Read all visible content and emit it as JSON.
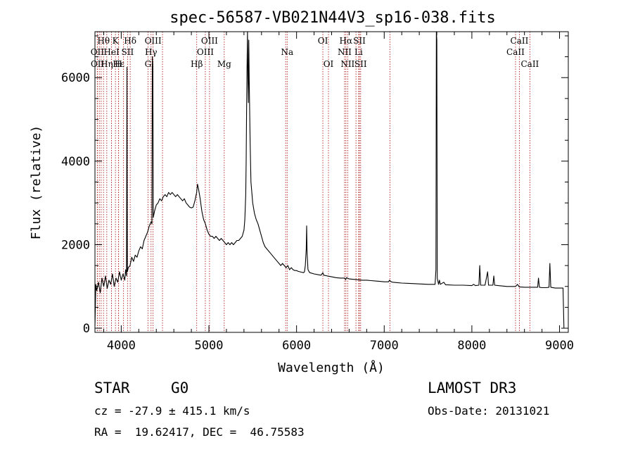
{
  "chart_data": {
    "type": "line",
    "title": "spec-56587-VB021N44V3_sp16-038.fits",
    "xlabel": "Wavelength (Å)",
    "ylabel": "Flux (relative)",
    "xlim": [
      3700,
      9100
    ],
    "ylim": [
      -100,
      7100
    ],
    "xticks": [
      4000,
      5000,
      6000,
      7000,
      8000,
      9000
    ],
    "yticks": [
      0,
      2000,
      4000,
      6000
    ],
    "line_color": "#000000",
    "marker_color": "#b22222",
    "spectrum": [
      [
        3700,
        50
      ],
      [
        3710,
        1050
      ],
      [
        3720,
        900
      ],
      [
        3740,
        1100
      ],
      [
        3760,
        850
      ],
      [
        3780,
        1200
      ],
      [
        3800,
        1000
      ],
      [
        3820,
        1250
      ],
      [
        3840,
        950
      ],
      [
        3860,
        1150
      ],
      [
        3880,
        1050
      ],
      [
        3900,
        1300
      ],
      [
        3920,
        1000
      ],
      [
        3940,
        1200
      ],
      [
        3960,
        1100
      ],
      [
        3980,
        1350
      ],
      [
        4000,
        1150
      ],
      [
        4020,
        1300
      ],
      [
        4040,
        1150
      ],
      [
        4050,
        1400
      ],
      [
        4060,
        1250
      ],
      [
        4065,
        6250
      ],
      [
        4070,
        1350
      ],
      [
        4080,
        1450
      ],
      [
        4100,
        1500
      ],
      [
        4120,
        1700
      ],
      [
        4140,
        1600
      ],
      [
        4160,
        1750
      ],
      [
        4180,
        1700
      ],
      [
        4200,
        1850
      ],
      [
        4220,
        1950
      ],
      [
        4240,
        1900
      ],
      [
        4260,
        2100
      ],
      [
        4280,
        2200
      ],
      [
        4300,
        2300
      ],
      [
        4320,
        2450
      ],
      [
        4340,
        2550
      ],
      [
        4350,
        2500
      ],
      [
        4355,
        6500
      ],
      [
        4360,
        6300
      ],
      [
        4365,
        2650
      ],
      [
        4380,
        2800
      ],
      [
        4400,
        2950
      ],
      [
        4420,
        3000
      ],
      [
        4440,
        3100
      ],
      [
        4460,
        3050
      ],
      [
        4480,
        3150
      ],
      [
        4500,
        3200
      ],
      [
        4520,
        3150
      ],
      [
        4540,
        3250
      ],
      [
        4560,
        3200
      ],
      [
        4580,
        3250
      ],
      [
        4600,
        3200
      ],
      [
        4620,
        3150
      ],
      [
        4640,
        3200
      ],
      [
        4660,
        3150
      ],
      [
        4680,
        3100
      ],
      [
        4700,
        3050
      ],
      [
        4720,
        3100
      ],
      [
        4740,
        3000
      ],
      [
        4760,
        2950
      ],
      [
        4780,
        2900
      ],
      [
        4800,
        2880
      ],
      [
        4820,
        2900
      ],
      [
        4840,
        3050
      ],
      [
        4860,
        3250
      ],
      [
        4870,
        3450
      ],
      [
        4880,
        3350
      ],
      [
        4900,
        3100
      ],
      [
        4920,
        2800
      ],
      [
        4940,
        2600
      ],
      [
        4960,
        2500
      ],
      [
        4980,
        2350
      ],
      [
        5000,
        2250
      ],
      [
        5020,
        2200
      ],
      [
        5040,
        2200
      ],
      [
        5060,
        2150
      ],
      [
        5080,
        2200
      ],
      [
        5100,
        2150
      ],
      [
        5120,
        2100
      ],
      [
        5140,
        2150
      ],
      [
        5160,
        2100
      ],
      [
        5180,
        2050
      ],
      [
        5200,
        2000
      ],
      [
        5220,
        2050
      ],
      [
        5240,
        2000
      ],
      [
        5260,
        2050
      ],
      [
        5280,
        2000
      ],
      [
        5300,
        2050
      ],
      [
        5320,
        2100
      ],
      [
        5340,
        2100
      ],
      [
        5360,
        2150
      ],
      [
        5380,
        2200
      ],
      [
        5400,
        2350
      ],
      [
        5410,
        2600
      ],
      [
        5420,
        3200
      ],
      [
        5425,
        4000
      ],
      [
        5430,
        5200
      ],
      [
        5435,
        6200
      ],
      [
        5440,
        7100
      ],
      [
        5445,
        6000
      ],
      [
        5450,
        5400
      ],
      [
        5455,
        6900
      ],
      [
        5460,
        6000
      ],
      [
        5470,
        4500
      ],
      [
        5480,
        3500
      ],
      [
        5500,
        3000
      ],
      [
        5520,
        2750
      ],
      [
        5540,
        2600
      ],
      [
        5560,
        2500
      ],
      [
        5580,
        2350
      ],
      [
        5600,
        2200
      ],
      [
        5620,
        2050
      ],
      [
        5640,
        1950
      ],
      [
        5660,
        1900
      ],
      [
        5680,
        1850
      ],
      [
        5700,
        1800
      ],
      [
        5720,
        1750
      ],
      [
        5740,
        1700
      ],
      [
        5760,
        1650
      ],
      [
        5780,
        1600
      ],
      [
        5800,
        1550
      ],
      [
        5820,
        1500
      ],
      [
        5840,
        1550
      ],
      [
        5860,
        1500
      ],
      [
        5880,
        1450
      ],
      [
        5900,
        1500
      ],
      [
        5920,
        1400
      ],
      [
        5940,
        1450
      ],
      [
        5960,
        1400
      ],
      [
        5980,
        1380
      ],
      [
        6000,
        1380
      ],
      [
        6020,
        1360
      ],
      [
        6040,
        1350
      ],
      [
        6060,
        1340
      ],
      [
        6080,
        1330
      ],
      [
        6090,
        1350
      ],
      [
        6100,
        1500
      ],
      [
        6110,
        1900
      ],
      [
        6115,
        2450
      ],
      [
        6120,
        1800
      ],
      [
        6130,
        1400
      ],
      [
        6150,
        1330
      ],
      [
        6200,
        1300
      ],
      [
        6250,
        1280
      ],
      [
        6280,
        1270
      ],
      [
        6300,
        1330
      ],
      [
        6310,
        1270
      ],
      [
        6350,
        1250
      ],
      [
        6400,
        1230
      ],
      [
        6450,
        1210
      ],
      [
        6500,
        1200
      ],
      [
        6550,
        1200
      ],
      [
        6560,
        1160
      ],
      [
        6570,
        1210
      ],
      [
        6600,
        1180
      ],
      [
        6650,
        1170
      ],
      [
        6700,
        1160
      ],
      [
        6750,
        1150
      ],
      [
        6800,
        1150
      ],
      [
        6850,
        1140
      ],
      [
        6900,
        1130
      ],
      [
        6950,
        1120
      ],
      [
        7000,
        1110
      ],
      [
        7050,
        1110
      ],
      [
        7060,
        1150
      ],
      [
        7080,
        1110
      ],
      [
        7100,
        1100
      ],
      [
        7150,
        1090
      ],
      [
        7200,
        1080
      ],
      [
        7300,
        1070
      ],
      [
        7400,
        1060
      ],
      [
        7500,
        1050
      ],
      [
        7580,
        1050
      ],
      [
        7590,
        1400
      ],
      [
        7595,
        7100
      ],
      [
        7600,
        6900
      ],
      [
        7605,
        1200
      ],
      [
        7620,
        1050
      ],
      [
        7630,
        1150
      ],
      [
        7640,
        1050
      ],
      [
        7680,
        1100
      ],
      [
        7700,
        1040
      ],
      [
        7800,
        1030
      ],
      [
        7900,
        1030
      ],
      [
        8000,
        1020
      ],
      [
        8020,
        1050
      ],
      [
        8040,
        1020
      ],
      [
        8080,
        1030
      ],
      [
        8090,
        1500
      ],
      [
        8100,
        1030
      ],
      [
        8150,
        1030
      ],
      [
        8180,
        1350
      ],
      [
        8190,
        1030
      ],
      [
        8240,
        1030
      ],
      [
        8250,
        1250
      ],
      [
        8260,
        1030
      ],
      [
        8300,
        1020
      ],
      [
        8350,
        1010
      ],
      [
        8400,
        1000
      ],
      [
        8450,
        1000
      ],
      [
        8500,
        1000
      ],
      [
        8520,
        1050
      ],
      [
        8540,
        990
      ],
      [
        8600,
        980
      ],
      [
        8650,
        980
      ],
      [
        8700,
        980
      ],
      [
        8750,
        980
      ],
      [
        8760,
        1200
      ],
      [
        8770,
        980
      ],
      [
        8800,
        970
      ],
      [
        8850,
        970
      ],
      [
        8880,
        980
      ],
      [
        8890,
        1550
      ],
      [
        8900,
        980
      ],
      [
        8950,
        960
      ],
      [
        9000,
        960
      ],
      [
        9040,
        960
      ],
      [
        9050,
        10
      ]
    ],
    "lines": [
      {
        "label": "Hθ",
        "wl": 3798,
        "row": 0
      },
      {
        "label": "K",
        "wl": 3934,
        "row": 0
      },
      {
        "label": "Hδ",
        "wl": 4102,
        "row": 0
      },
      {
        "label": "OIII",
        "wl": 4363,
        "row": 0
      },
      {
        "label": "OIII",
        "wl": 5007,
        "row": 0
      },
      {
        "label": "OI",
        "wl": 6300,
        "row": 0
      },
      {
        "label": "Hα",
        "wl": 6563,
        "row": 0
      },
      {
        "label": "SII",
        "wl": 6717,
        "row": 0
      },
      {
        "label": "CaII",
        "wl": 8542,
        "row": 0
      },
      {
        "label": "OII",
        "wl": 3727,
        "row": 1
      },
      {
        "label": "HeI",
        "wl": 3889,
        "row": 1
      },
      {
        "label": "SII",
        "wl": 4072,
        "row": 1
      },
      {
        "label": "Hγ",
        "wl": 4340,
        "row": 1
      },
      {
        "label": "OIII",
        "wl": 4959,
        "row": 1
      },
      {
        "label": "Na",
        "wl": 5893,
        "row": 1
      },
      {
        "label": "NII",
        "wl": 6548,
        "row": 1
      },
      {
        "label": "Li",
        "wl": 6708,
        "row": 1
      },
      {
        "label": "CaII",
        "wl": 8498,
        "row": 1
      },
      {
        "label": "OII",
        "wl": 3729,
        "row": 2
      },
      {
        "label": "Hε",
        "wl": 3970,
        "row": 2
      },
      {
        "label": "Hη",
        "wl": 3835,
        "row": 2
      },
      {
        "label": "H",
        "wl": 3968,
        "row": 2
      },
      {
        "label": "G",
        "wl": 4305,
        "row": 2
      },
      {
        "label": "Hβ",
        "wl": 4861,
        "row": 2
      },
      {
        "label": "Mg",
        "wl": 5175,
        "row": 2
      },
      {
        "label": "OI",
        "wl": 6364,
        "row": 2
      },
      {
        "label": "NII",
        "wl": 6583,
        "row": 2
      },
      {
        "label": "SII",
        "wl": 6731,
        "row": 2
      },
      {
        "label": "CaII",
        "wl": 8662,
        "row": 2
      }
    ],
    "extra_markers": [
      3750,
      3771,
      3889,
      4026,
      4471,
      5876,
      6678,
      7065
    ]
  },
  "info": {
    "obj_class": "STAR",
    "subclass": "G0",
    "survey": "LAMOST DR3",
    "cz": "cz = -27.9 ± 415.1 km/s",
    "obs_date": "Obs-Date: 20131021",
    "radec": "RA =  19.62417, DEC =  46.75583"
  }
}
